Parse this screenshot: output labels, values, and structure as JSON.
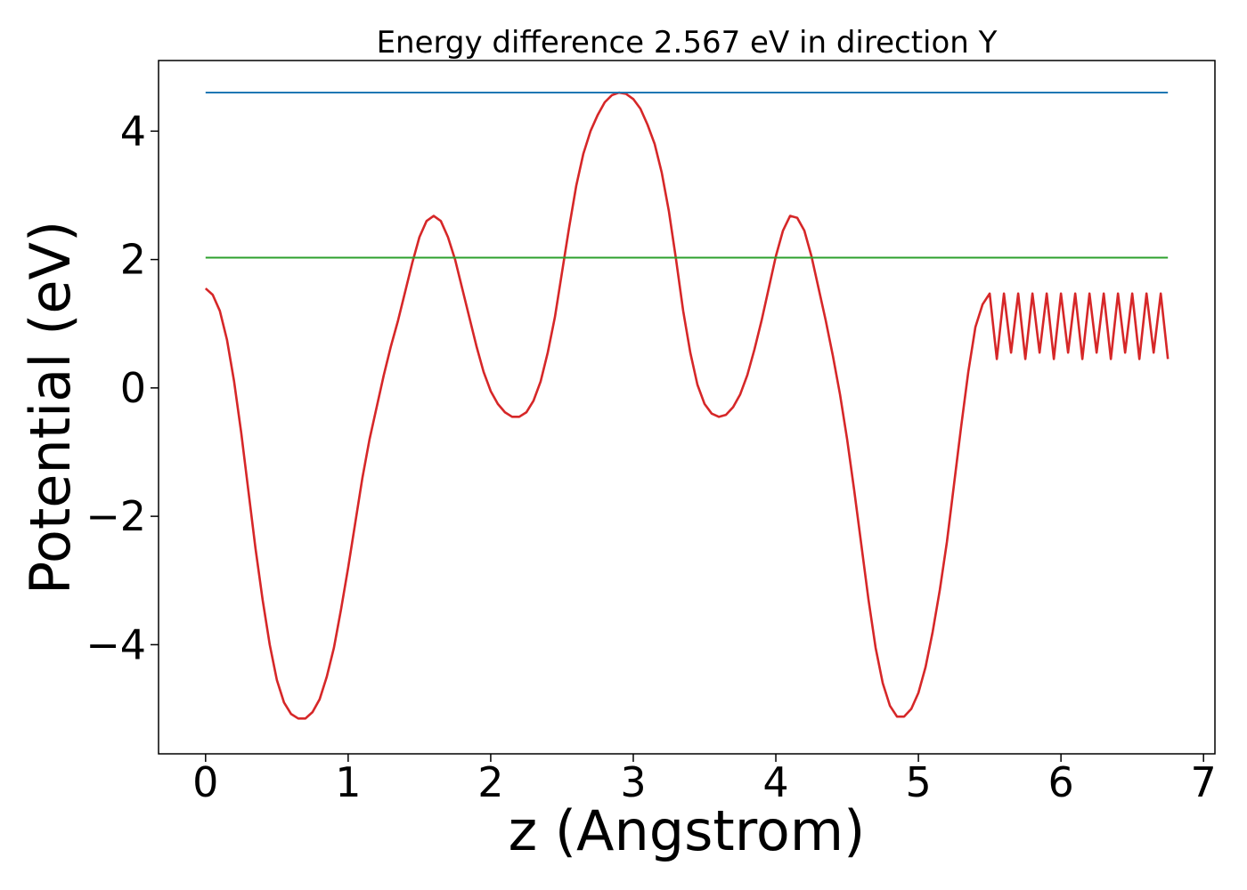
{
  "chart_data": {
    "type": "line",
    "title": "Energy difference 2.567 eV in direction Y",
    "xlabel": "z (Angstrom)",
    "ylabel": "Potential (eV)",
    "xlim": [
      -0.33,
      7.08
    ],
    "ylim": [
      -5.7,
      5.1
    ],
    "xticks": [
      0,
      1,
      2,
      3,
      4,
      5,
      6,
      7
    ],
    "yticks": [
      -4,
      -2,
      0,
      2,
      4
    ],
    "xtick_labels": [
      "0",
      "1",
      "2",
      "3",
      "4",
      "5",
      "6",
      "7"
    ],
    "ytick_labels": [
      "−4",
      "−2",
      "0",
      "2",
      "4"
    ],
    "grid": false,
    "colors": {
      "potential": "#d62728",
      "max_line": "#1f77b4",
      "mean_line": "#2ca02c",
      "axes": "#000000"
    },
    "series": [
      {
        "key": "potential",
        "x": [
          0.0,
          0.05,
          0.1,
          0.15,
          0.2,
          0.25,
          0.3,
          0.35,
          0.4,
          0.45,
          0.5,
          0.55,
          0.6,
          0.65,
          0.7,
          0.75,
          0.8,
          0.85,
          0.9,
          0.95,
          1.0,
          1.05,
          1.1,
          1.15,
          1.2,
          1.25,
          1.3,
          1.35,
          1.4,
          1.45,
          1.5,
          1.55,
          1.6,
          1.65,
          1.7,
          1.75,
          1.8,
          1.85,
          1.9,
          1.95,
          2.0,
          2.05,
          2.1,
          2.15,
          2.2,
          2.25,
          2.3,
          2.35,
          2.4,
          2.45,
          2.5,
          2.55,
          2.6,
          2.65,
          2.7,
          2.75,
          2.8,
          2.85,
          2.9,
          2.95,
          3.0,
          3.05,
          3.1,
          3.15,
          3.2,
          3.25,
          3.3,
          3.35,
          3.4,
          3.45,
          3.5,
          3.55,
          3.6,
          3.65,
          3.7,
          3.75,
          3.8,
          3.85,
          3.9,
          3.95,
          4.0,
          4.05,
          4.1,
          4.15,
          4.2,
          4.25,
          4.3,
          4.35,
          4.4,
          4.45,
          4.5,
          4.55,
          4.6,
          4.65,
          4.7,
          4.75,
          4.8,
          4.85,
          4.9,
          4.95,
          5.0,
          5.05,
          5.1,
          5.15,
          5.2,
          5.25,
          5.3,
          5.35,
          5.4,
          5.45,
          5.5,
          5.55,
          5.6,
          5.65,
          5.7,
          5.75,
          5.8,
          5.85,
          5.9,
          5.95,
          6.0,
          6.05,
          6.1,
          6.15,
          6.2,
          6.25,
          6.3,
          6.35,
          6.4,
          6.45,
          6.5,
          6.55,
          6.6,
          6.65,
          6.7,
          6.75
        ],
        "y": [
          1.55,
          1.45,
          1.2,
          0.75,
          0.1,
          -0.7,
          -1.6,
          -2.5,
          -3.3,
          -4.0,
          -4.55,
          -4.9,
          -5.08,
          -5.15,
          -5.15,
          -5.05,
          -4.85,
          -4.5,
          -4.05,
          -3.45,
          -2.8,
          -2.1,
          -1.4,
          -0.8,
          -0.3,
          0.2,
          0.65,
          1.05,
          1.5,
          1.95,
          2.35,
          2.6,
          2.68,
          2.6,
          2.35,
          2.0,
          1.55,
          1.1,
          0.65,
          0.25,
          -0.05,
          -0.25,
          -0.38,
          -0.45,
          -0.45,
          -0.38,
          -0.2,
          0.1,
          0.55,
          1.1,
          1.8,
          2.5,
          3.15,
          3.65,
          4.0,
          4.25,
          4.45,
          4.56,
          4.6,
          4.58,
          4.5,
          4.35,
          4.1,
          3.8,
          3.35,
          2.75,
          2.0,
          1.2,
          0.55,
          0.05,
          -0.25,
          -0.4,
          -0.45,
          -0.42,
          -0.3,
          -0.1,
          0.2,
          0.6,
          1.05,
          1.55,
          2.05,
          2.45,
          2.68,
          2.65,
          2.45,
          2.05,
          1.55,
          1.05,
          0.5,
          -0.1,
          -0.8,
          -1.6,
          -2.45,
          -3.3,
          -4.05,
          -4.6,
          -4.95,
          -5.12,
          -5.12,
          -5.0,
          -4.75,
          -4.35,
          -3.8,
          -3.15,
          -2.4,
          -1.5,
          -0.6,
          0.25,
          0.95,
          1.3,
          1.47,
          0.45,
          1.47,
          0.55,
          1.47,
          0.45,
          1.47,
          0.55,
          1.47,
          0.45,
          1.47,
          0.55,
          1.47,
          0.45,
          1.47,
          0.55,
          1.47,
          0.45,
          1.47,
          0.55,
          1.47,
          0.45,
          1.47,
          0.55,
          1.47,
          0.45
        ]
      },
      {
        "key": "max_line",
        "x": [
          0.0,
          6.75
        ],
        "y": [
          4.6,
          4.6
        ]
      },
      {
        "key": "mean_line",
        "x": [
          0.0,
          6.75
        ],
        "y": [
          2.03,
          2.03
        ]
      }
    ]
  }
}
